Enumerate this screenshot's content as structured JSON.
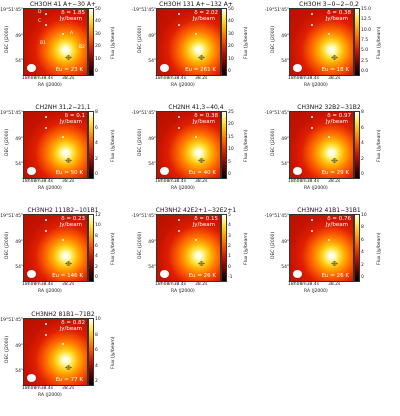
{
  "axes": {
    "dec_ticks": [
      "-19°51'45\"",
      "49\"",
      "54\""
    ],
    "dec_label": "DEC (J2000)",
    "ra_ticks": [
      "18h08m38.4s",
      "38.2s"
    ],
    "ra_label": "RA (J2000)",
    "cbar_label": "Flux (Jy/beam)",
    "unit": "Jy/beam"
  },
  "source_labels": [
    "D",
    "C",
    "A",
    "B1",
    "B2"
  ],
  "panels": [
    {
      "title": "CH3OH 41 A+−30 A+",
      "delta": "δ = 1.85",
      "eu": "Eu = 23 K",
      "cticks": [
        "50",
        "40",
        "30",
        "20",
        "10",
        "0"
      ]
    },
    {
      "title": "CH3OH 131 A+−132 A+",
      "delta": "δ = 2.02",
      "eu": "Eu = 261 K",
      "cticks": [
        "50",
        "40",
        "30",
        "20",
        "10",
        "0"
      ]
    },
    {
      "title": "CH3OH 3−0−2−0,2",
      "delta": "δ = 0.38",
      "eu": "Eu = 18 K",
      "cticks": [
        "15.0",
        "12.5",
        "10.0",
        "7.5",
        "5.0",
        "2.5",
        "0.0"
      ]
    },
    {
      "title": "CH2NH 31,2−21,1",
      "delta": "δ = 0.1",
      "eu": "Eu = 50 K",
      "cticks": [
        "8",
        "6",
        "4",
        "2",
        "0"
      ]
    },
    {
      "title": "CH2NH 41,3−40,4",
      "delta": "δ = 0.38",
      "eu": "Eu = 40 K",
      "cticks": [
        "25",
        "20",
        "15",
        "10",
        "5",
        "0"
      ]
    },
    {
      "title": "CH3NH2 32B2−31B2",
      "delta": "δ = 0.97",
      "eu": "Eu = 29 K",
      "cticks": [
        "8",
        "6",
        "4",
        "2",
        "0"
      ]
    },
    {
      "title": "CH3NH2 111B2−101B1",
      "delta": "δ = 0.23",
      "eu": "Eu = 146 K",
      "cticks": [
        "12",
        "10",
        "8",
        "6",
        "4",
        "2",
        "0"
      ]
    },
    {
      "title": "CH3NH2 42E2+1−32E2+1",
      "delta": "δ = 0.15",
      "eu": "Eu = 26 K",
      "cticks": [
        "5",
        "4",
        "3",
        "2",
        "1",
        "0",
        "-1"
      ]
    },
    {
      "title": "CH3NH2 41B1−31B1",
      "delta": "δ = 0.76",
      "eu": "Eu = 26 K",
      "cticks": [
        "10",
        "8",
        "6",
        "4",
        "2",
        "0"
      ]
    },
    {
      "title": "CH3NH2 81B1−71B2",
      "delta": "δ = 0.82",
      "eu": "Eu = 77 K",
      "cticks": [
        "10",
        "8",
        "6",
        "4",
        "2"
      ]
    }
  ]
}
